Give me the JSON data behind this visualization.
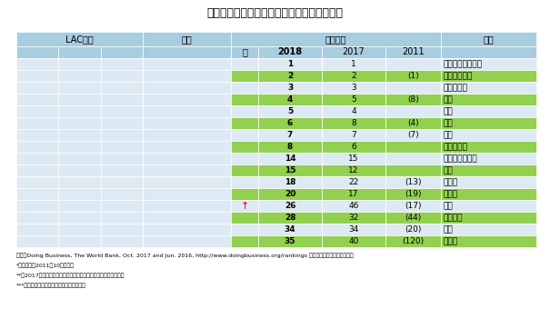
{
  "title": "世界のビジネス環境ランキング（世界上位）",
  "rows": [
    {
      "arrow": "",
      "r2018": "1",
      "r2017": "1",
      "r2011": "",
      "country": "ニュージーランド",
      "green": false
    },
    {
      "arrow": "",
      "r2018": "2",
      "r2017": "2",
      "r2011": "(1)",
      "country": "シンガポール",
      "green": true
    },
    {
      "arrow": "",
      "r2018": "3",
      "r2017": "3",
      "r2011": "",
      "country": "デンマーク",
      "green": false
    },
    {
      "arrow": "",
      "r2018": "4",
      "r2017": "5",
      "r2011": "(8)",
      "country": "韓国",
      "green": true
    },
    {
      "arrow": "",
      "r2018": "5",
      "r2017": "4",
      "r2011": "",
      "country": "香港",
      "green": false
    },
    {
      "arrow": "",
      "r2018": "6",
      "r2017": "8",
      "r2011": "(4)",
      "country": "米国",
      "green": true
    },
    {
      "arrow": "",
      "r2018": "7",
      "r2017": "7",
      "r2011": "(7)",
      "country": "英国",
      "green": false
    },
    {
      "arrow": "",
      "r2018": "8",
      "r2017": "6",
      "r2011": "",
      "country": "ノルウェイ",
      "green": true
    },
    {
      "arrow": "",
      "r2018": "14",
      "r2017": "15",
      "r2011": "",
      "country": "オーストラリア",
      "green": false
    },
    {
      "arrow": "",
      "r2018": "15",
      "r2017": "12",
      "r2011": "",
      "country": "台湾",
      "green": true
    },
    {
      "arrow": "",
      "r2018": "18",
      "r2017": "22",
      "r2011": "(13)",
      "country": "カナダ",
      "green": false
    },
    {
      "arrow": "",
      "r2018": "20",
      "r2017": "17",
      "r2011": "(19)",
      "country": "ドイツ",
      "green": true
    },
    {
      "arrow": "↑",
      "r2018": "26",
      "r2017": "46",
      "r2011": "(17)",
      "country": "タイ",
      "green": false
    },
    {
      "arrow": "",
      "r2018": "28",
      "r2017": "32",
      "r2011": "(44)",
      "country": "スペイン",
      "green": true
    },
    {
      "arrow": "",
      "r2018": "34",
      "r2017": "34",
      "r2011": "(20)",
      "country": "日本",
      "green": false
    },
    {
      "arrow": "",
      "r2018": "35",
      "r2017": "40",
      "r2011": "(120)",
      "country": "ロシア",
      "green": true
    }
  ],
  "footnotes": [
    "出典：Doing Business, The World Bank, Oct. 2017 and Jun. 2016, http://www.doingbusiness.org/rankings 他のデータを基に筆者が作成",
    "*：（）内は2011年10月の順位",
    "**：2017年に比して，順位を１０以上上下させた国を矢印で表示",
    "***：キューバについてはデータがなかった"
  ],
  "header_bg": "#a8cce0",
  "row_light": "#ddeaf4",
  "row_green": "#92d050",
  "arrow_color": "#cc0000",
  "lac_header": "LAC順位",
  "country_header": "国名",
  "world_header": "世界順位",
  "year_label": "年",
  "col_2018": "2018",
  "col_2017": "2017",
  "col_2011": "2011"
}
